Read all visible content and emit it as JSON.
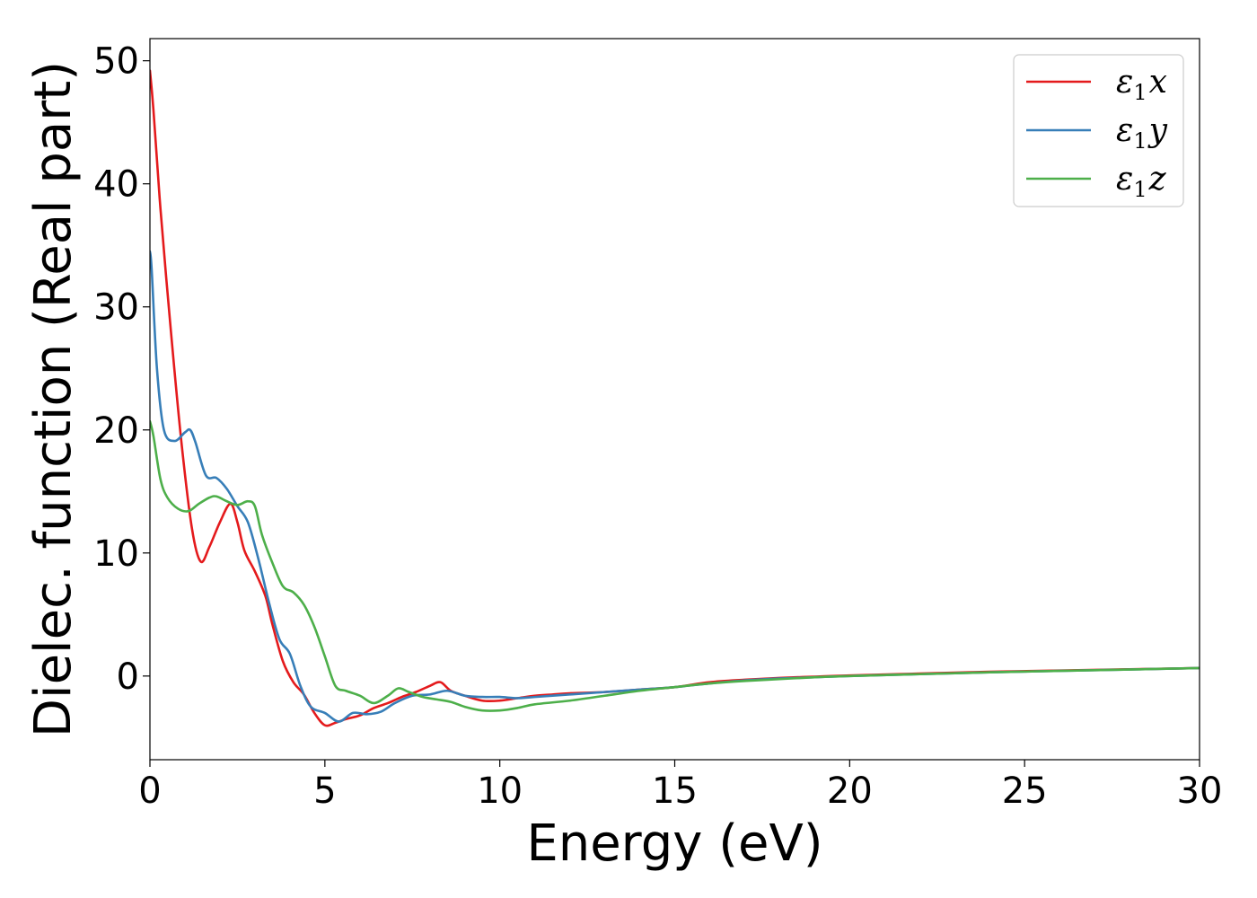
{
  "chart_data": {
    "type": "line",
    "title": "",
    "xlabel": "Energy (eV)",
    "ylabel": "Dielec. function (Real part)",
    "xlim": [
      0,
      30
    ],
    "ylim": [
      -6.8,
      51.8
    ],
    "xticks": [
      0,
      5,
      10,
      15,
      20,
      25,
      30
    ],
    "yticks": [
      0,
      10,
      20,
      30,
      40,
      50
    ],
    "grid": false,
    "legend_placement": "top-right",
    "series": [
      {
        "name": "ε1x",
        "legend_base": "ε",
        "legend_sub": "1",
        "legend_axis": "x",
        "color": "#e41a1c",
        "x": [
          0,
          0.1,
          0.3,
          0.6,
          0.9,
          1.2,
          1.45,
          1.7,
          2.0,
          2.3,
          2.5,
          2.7,
          3.0,
          3.3,
          3.5,
          3.8,
          4.1,
          4.4,
          4.7,
          5.0,
          5.3,
          5.6,
          6.0,
          6.4,
          6.8,
          7.2,
          7.6,
          8.0,
          8.3,
          8.6,
          9.0,
          9.5,
          10.0,
          10.5,
          11.0,
          11.5,
          12.0,
          13.0,
          14.0,
          15.0,
          16.0,
          17.0,
          18.0,
          19.0,
          20.0,
          22.0,
          24.0,
          26.0,
          28.0,
          30.0
        ],
        "y": [
          49.2,
          46,
          38,
          28,
          19,
          12,
          9.3,
          10.5,
          12.5,
          14,
          12.5,
          10.2,
          8.5,
          6.5,
          4.2,
          1.2,
          -0.5,
          -1.5,
          -3.0,
          -4.0,
          -3.8,
          -3.5,
          -3.2,
          -2.6,
          -2.2,
          -1.7,
          -1.3,
          -0.8,
          -0.5,
          -1.2,
          -1.6,
          -2.0,
          -2.0,
          -1.8,
          -1.6,
          -1.5,
          -1.4,
          -1.3,
          -1.1,
          -0.9,
          -0.5,
          -0.3,
          -0.15,
          -0.05,
          0.05,
          0.2,
          0.35,
          0.45,
          0.55,
          0.65
        ]
      },
      {
        "name": "ε1y",
        "legend_base": "ε",
        "legend_sub": "1",
        "legend_axis": "y",
        "color": "#377eb8",
        "x": [
          0,
          0.05,
          0.2,
          0.4,
          0.7,
          1.0,
          1.15,
          1.3,
          1.6,
          1.9,
          2.2,
          2.5,
          2.8,
          3.1,
          3.4,
          3.7,
          4.0,
          4.3,
          4.6,
          5.0,
          5.4,
          5.8,
          6.2,
          6.6,
          7.0,
          7.5,
          8.0,
          8.5,
          9.0,
          9.5,
          10.0,
          10.5,
          11.0,
          12.0,
          13.0,
          14.0,
          15.0,
          16.0,
          17.0,
          18.0,
          19.0,
          20.0,
          22.0,
          24.0,
          26.0,
          28.0,
          30.0
        ],
        "y": [
          34.5,
          33,
          25,
          20,
          19.1,
          19.8,
          20.0,
          19.0,
          16.3,
          16.1,
          15.2,
          13.8,
          12.5,
          9.5,
          6.0,
          3.0,
          1.8,
          -0.8,
          -2.5,
          -3.0,
          -3.7,
          -3.0,
          -3.1,
          -2.9,
          -2.2,
          -1.6,
          -1.5,
          -1.2,
          -1.6,
          -1.7,
          -1.7,
          -1.8,
          -1.7,
          -1.5,
          -1.3,
          -1.1,
          -0.9,
          -0.6,
          -0.35,
          -0.2,
          -0.1,
          0.0,
          0.15,
          0.3,
          0.42,
          0.53,
          0.65
        ]
      },
      {
        "name": "ε1z",
        "legend_base": "ε",
        "legend_sub": "1",
        "legend_axis": "z",
        "color": "#4daf4a",
        "x": [
          0,
          0.1,
          0.3,
          0.5,
          0.8,
          1.1,
          1.4,
          1.7,
          1.9,
          2.2,
          2.5,
          2.8,
          3.0,
          3.2,
          3.5,
          3.8,
          4.1,
          4.4,
          4.7,
          5.0,
          5.3,
          5.6,
          6.0,
          6.4,
          6.8,
          7.1,
          7.4,
          7.8,
          8.2,
          8.6,
          9.0,
          9.5,
          10.0,
          10.5,
          11.0,
          12.0,
          13.0,
          14.0,
          15.0,
          16.0,
          17.0,
          18.0,
          19.0,
          20.0,
          22.0,
          24.0,
          26.0,
          28.0,
          30.0
        ],
        "y": [
          20.7,
          19.5,
          16,
          14.5,
          13.6,
          13.4,
          14.0,
          14.5,
          14.6,
          14.2,
          13.9,
          14.2,
          13.8,
          11.5,
          9.2,
          7.3,
          6.8,
          5.8,
          4.0,
          1.6,
          -0.8,
          -1.2,
          -1.6,
          -2.2,
          -1.6,
          -1.0,
          -1.3,
          -1.7,
          -1.9,
          -2.1,
          -2.5,
          -2.8,
          -2.8,
          -2.6,
          -2.3,
          -2.0,
          -1.6,
          -1.2,
          -0.9,
          -0.6,
          -0.4,
          -0.25,
          -0.1,
          0.0,
          0.15,
          0.3,
          0.42,
          0.53,
          0.65
        ]
      }
    ]
  }
}
